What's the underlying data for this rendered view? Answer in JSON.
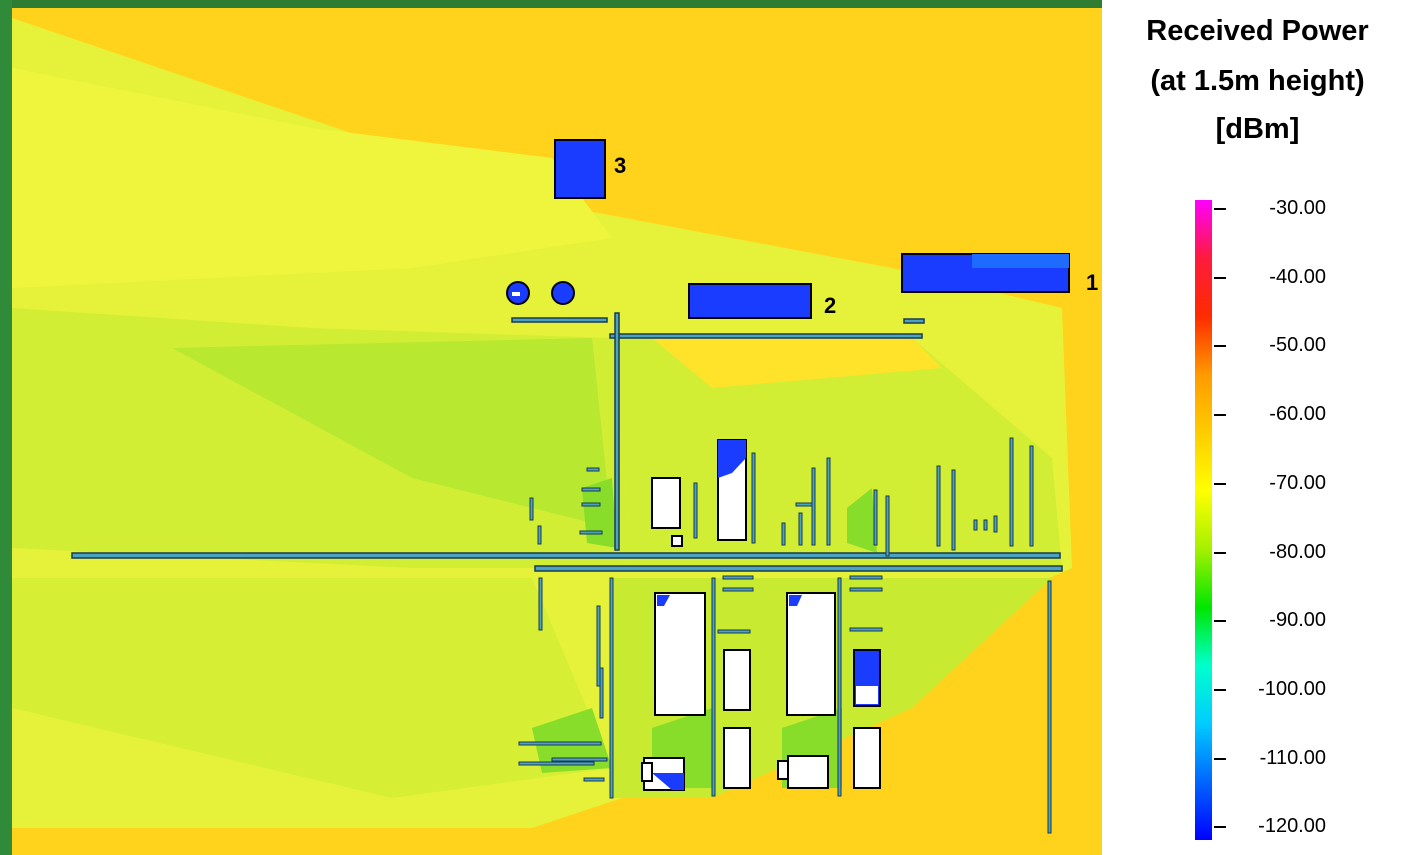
{
  "legend": {
    "title_line1": "Received Power",
    "title_line2": "(at 1.5m height)",
    "title_line3": "[dBm]",
    "ticks": [
      "-30.00",
      "-40.00",
      "-50.00",
      "-60.00",
      "-70.00",
      "-80.00",
      "-90.00",
      "-100.00",
      "-110.00",
      "-120.00"
    ],
    "colors": [
      "#ff00ff",
      "#ff1a3c",
      "#ff2b00",
      "#ff9a00",
      "#ffcc00",
      "#ffff00",
      "#a6f000",
      "#00e600",
      "#00ffcc",
      "#00ccff",
      "#0066ff",
      "#0000ff"
    ]
  },
  "map": {
    "colors": {
      "background": "#ffd21c",
      "light": "#e6f23a",
      "mid": "#ccec2e",
      "green": "#9be22a",
      "building": "#ffffff",
      "wall_outline": "#1a3a4a",
      "wall_fill": "#4aa3c4",
      "shadow": "#1a3cff"
    },
    "building_labels": [
      "1",
      "2",
      "3"
    ]
  }
}
